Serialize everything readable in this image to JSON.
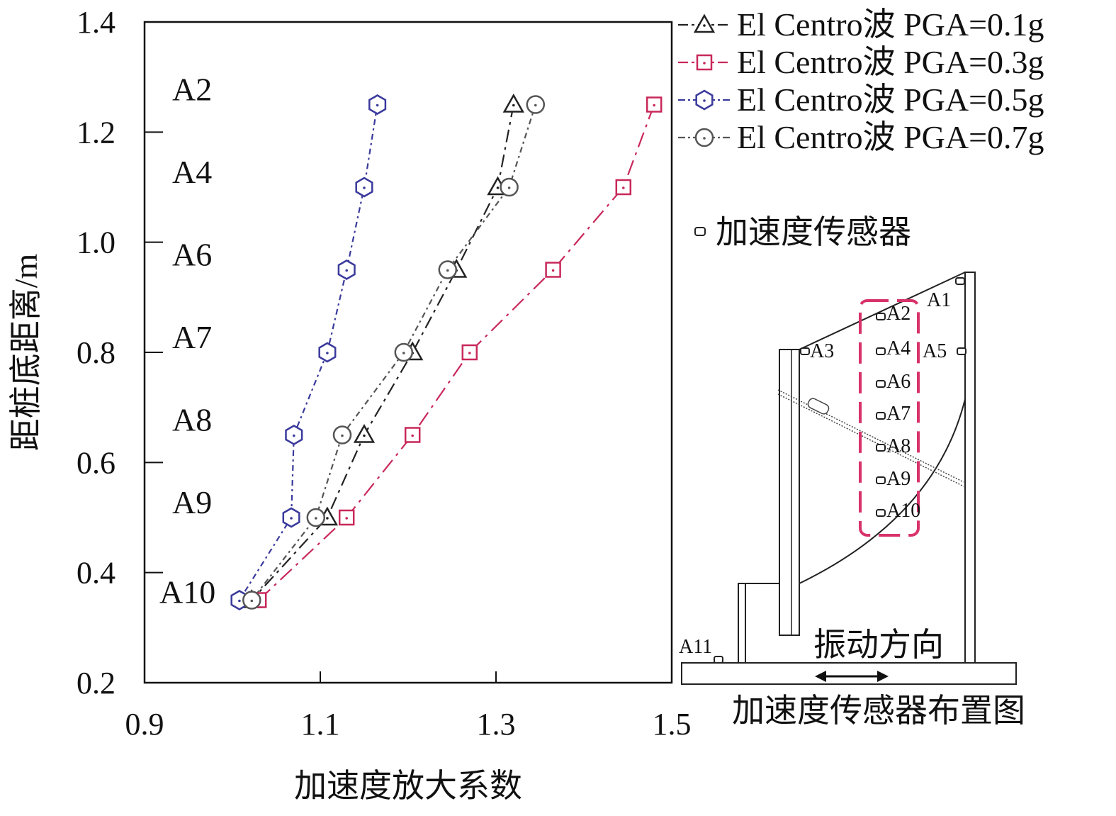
{
  "chart_data": {
    "type": "line",
    "title": "",
    "xlabel": "加速度放大系数",
    "ylabel": "距桩底距离/m",
    "xlim": [
      0.9,
      1.5
    ],
    "ylim": [
      0.2,
      1.4
    ],
    "xticks": [
      "0.9",
      "1.1",
      "1.3",
      "1.5"
    ],
    "yticks": [
      "0.2",
      "0.4",
      "0.6",
      "0.8",
      "1.0",
      "1.2",
      "1.4"
    ],
    "grid": false,
    "legend_position": "top-right",
    "y": [
      1.25,
      1.1,
      0.95,
      0.8,
      0.65,
      0.5,
      0.35
    ],
    "level_labels": [
      "A2",
      "A4",
      "A6",
      "A7",
      "A8",
      "A9",
      "A10"
    ],
    "series": [
      {
        "name": "El Centro波 PGA=0.1g",
        "marker": "triangle",
        "color": "#222222",
        "dash": "18,7,4,7",
        "x": [
          1.32,
          1.302,
          1.255,
          1.205,
          1.15,
          1.108,
          1.022
        ]
      },
      {
        "name": "El Centro波 PGA=0.3g",
        "marker": "square",
        "color": "#c8285a",
        "dash": "22,8,4,8",
        "x": [
          1.48,
          1.445,
          1.365,
          1.27,
          1.205,
          1.13,
          1.03
        ]
      },
      {
        "name": "El Centro波 PGA=0.5g",
        "marker": "hexagon",
        "color": "#3a3a9c",
        "dash": "8,5,3,5",
        "x": [
          1.165,
          1.15,
          1.13,
          1.108,
          1.07,
          1.067,
          1.008
        ]
      },
      {
        "name": "El Centro波 PGA=0.7g",
        "marker": "circle",
        "color": "#555555",
        "dash": "8,5,3,5",
        "x": [
          1.345,
          1.315,
          1.245,
          1.195,
          1.125,
          1.095,
          1.022
        ]
      }
    ]
  },
  "diagram": {
    "sensor_legend_label": "加速度传感器",
    "title": "加速度传感器布置图",
    "vibration_label": "振动方向",
    "sensor_labels": {
      "a1": "A1",
      "a2": "A2",
      "a3": "A3",
      "a4": "A4",
      "a5": "A5",
      "a6": "A6",
      "a7": "A7",
      "a8": "A8",
      "a9": "A9",
      "a10": "A10",
      "a11": "A11"
    }
  }
}
